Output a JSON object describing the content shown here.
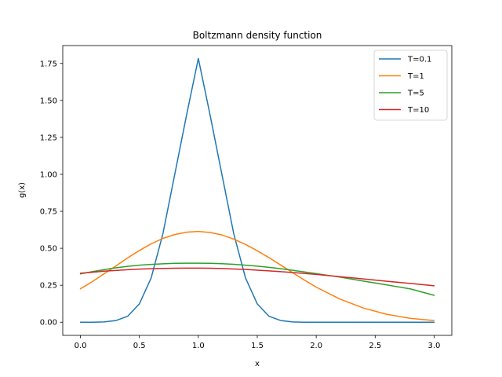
{
  "chart_data": {
    "type": "line",
    "title": "Boltzmann density function",
    "xlabel": "x",
    "ylabel": "g(x)",
    "xlim": [
      -0.15,
      3.15
    ],
    "ylim": [
      -0.089,
      1.871
    ],
    "xticks": [
      0.0,
      0.5,
      1.0,
      1.5,
      2.0,
      2.5,
      3.0
    ],
    "xtick_labels": [
      "0.0",
      "0.5",
      "1.0",
      "1.5",
      "2.0",
      "2.5",
      "3.0"
    ],
    "yticks": [
      0.0,
      0.25,
      0.5,
      0.75,
      1.0,
      1.25,
      1.5,
      1.75
    ],
    "ytick_labels": [
      "0.00",
      "0.25",
      "0.50",
      "0.75",
      "1.00",
      "1.25",
      "1.50",
      "1.75"
    ],
    "grid": false,
    "legend_position": "top-right",
    "x": [
      0.0,
      0.1,
      0.2,
      0.3,
      0.4,
      0.5,
      0.6,
      0.7,
      0.8,
      0.9,
      1.0,
      1.1,
      1.2,
      1.3,
      1.4,
      1.5,
      1.6,
      1.7,
      1.8,
      1.9,
      2.0,
      2.2,
      2.4,
      2.6,
      2.8,
      3.0
    ],
    "series": [
      {
        "name": "T=0.1",
        "color": "#1f77b4",
        "values": [
          0.0,
          0.0,
          0.002,
          0.011,
          0.04,
          0.124,
          0.3,
          0.6,
          1.0,
          1.4,
          1.784,
          1.4,
          1.0,
          0.6,
          0.3,
          0.124,
          0.04,
          0.011,
          0.002,
          0.0,
          0.0,
          0.0,
          0.0,
          0.0,
          0.0,
          0.0
        ]
      },
      {
        "name": "T=1",
        "color": "#ff7f0e",
        "values": [
          0.226,
          0.274,
          0.327,
          0.38,
          0.435,
          0.485,
          0.53,
          0.567,
          0.593,
          0.609,
          0.614,
          0.607,
          0.59,
          0.562,
          0.526,
          0.483,
          0.436,
          0.386,
          0.335,
          0.285,
          0.237,
          0.157,
          0.096,
          0.053,
          0.026,
          0.011
        ]
      },
      {
        "name": "T=5",
        "color": "#2ca02c",
        "values": [
          0.327,
          0.342,
          0.355,
          0.368,
          0.378,
          0.386,
          0.391,
          0.395,
          0.398,
          0.399,
          0.399,
          0.398,
          0.396,
          0.392,
          0.386,
          0.379,
          0.371,
          0.362,
          0.351,
          0.34,
          0.329,
          0.305,
          0.278,
          0.252,
          0.225,
          0.182
        ]
      },
      {
        "name": "T=10",
        "color": "#d62728",
        "values": [
          0.331,
          0.338,
          0.345,
          0.35,
          0.355,
          0.359,
          0.362,
          0.364,
          0.365,
          0.366,
          0.366,
          0.365,
          0.363,
          0.36,
          0.357,
          0.352,
          0.347,
          0.342,
          0.336,
          0.33,
          0.323,
          0.308,
          0.293,
          0.277,
          0.262,
          0.246
        ]
      }
    ]
  }
}
